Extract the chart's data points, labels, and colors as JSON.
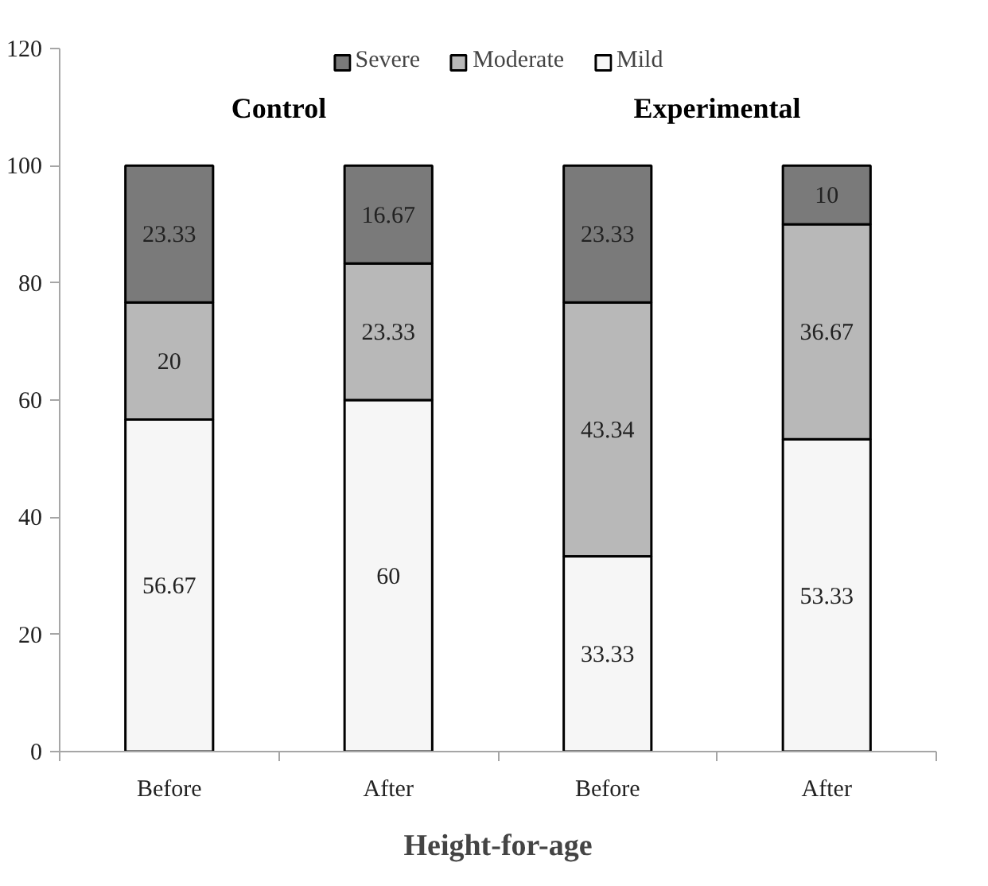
{
  "chart_data": {
    "type": "bar",
    "stacked": true,
    "xlabel": "Height-for-age",
    "annotations": [
      "Control",
      "Experimental"
    ],
    "categories": [
      "Before",
      "After",
      "Before",
      "After"
    ],
    "series": [
      {
        "name": "Mild",
        "color": "#f6f6f6",
        "values": [
          56.67,
          60,
          33.33,
          53.33
        ]
      },
      {
        "name": "Moderate",
        "color": "#b8b8b8",
        "values": [
          20,
          23.33,
          43.34,
          36.67
        ]
      },
      {
        "name": "Severe",
        "color": "#7a7a7a",
        "values": [
          23.33,
          16.67,
          23.33,
          10
        ]
      }
    ],
    "ylim": [
      0,
      120
    ],
    "yticks": [
      0,
      20,
      40,
      60,
      80,
      100,
      120
    ],
    "data_labels": true,
    "legend": "top"
  }
}
